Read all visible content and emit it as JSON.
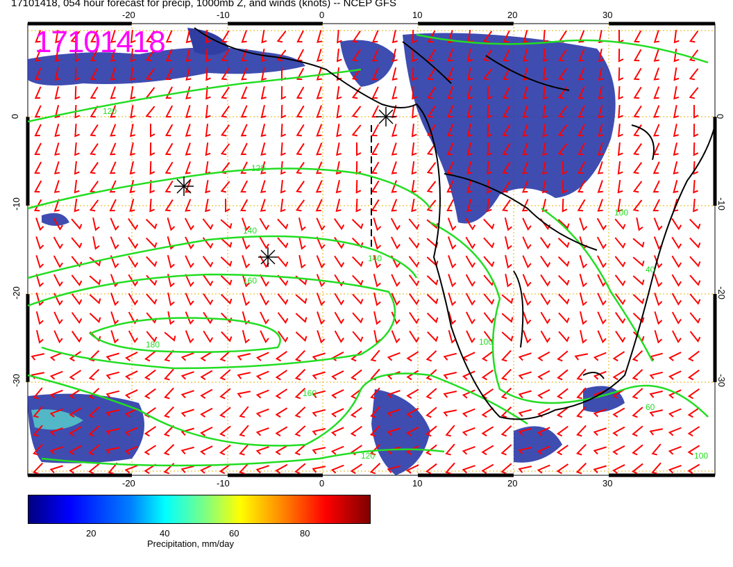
{
  "title": "17101418, 054 hour forecast for precip, 1000mb Z, and winds (knots) -- NCEP GFS",
  "stamp": "17101418",
  "colors": {
    "contour": "#22dd22",
    "barb": "#ff0000",
    "grid": "#e0b000",
    "stamp": "#ff00ff",
    "coast": "#000000"
  },
  "map": {
    "lon_ticks": [
      "-20",
      "-10",
      "0",
      "10",
      "20",
      "30"
    ],
    "lat_ticks_left": [
      "0",
      "-10",
      "-20",
      "-30"
    ],
    "lat_ticks_right": [
      "0",
      "-10",
      "-20",
      "-30"
    ],
    "contour_labels": [
      "120",
      "140",
      "160",
      "180",
      "160",
      "140",
      "120",
      "100",
      "60",
      "40",
      "100",
      "120",
      "100"
    ]
  },
  "colorbar": {
    "ticks": [
      "20",
      "40",
      "60",
      "80"
    ],
    "label": "Precipitation, mm/day"
  }
}
